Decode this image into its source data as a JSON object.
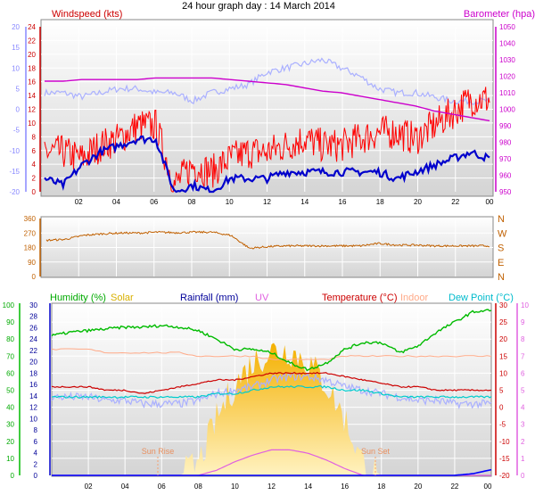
{
  "title": "24 hour graph day : 14 March 2014",
  "colors": {
    "wind": "#ff0000",
    "wind_avg": "#0000cc",
    "temp_overlay": "#aab0ff",
    "baro": "#cc00cc",
    "dir": "#c06000",
    "humidity": "#00bb00",
    "solar": "#f0c000",
    "rain": "#0000ff",
    "uv": "#e060e0",
    "temperature": "#cc0000",
    "indoor": "#ffaa88",
    "dewpoint": "#00cccc"
  },
  "panel1": {
    "left_label": "Windspeed (kts)",
    "right_label": "Barometer (hpa)",
    "outer_ticks": [
      "20",
      "15",
      "10",
      "5",
      "0",
      "-5",
      "-10",
      "-15",
      "-20"
    ],
    "left_ticks": [
      "24",
      "22",
      "20",
      "18",
      "16",
      "14",
      "12",
      "10",
      "8",
      "6",
      "4",
      "2",
      "0"
    ],
    "right_ticks": [
      "1050",
      "1040",
      "1030",
      "1020",
      "1010",
      "1000",
      "990",
      "980",
      "970",
      "960",
      "950"
    ]
  },
  "panel2": {
    "left_ticks": [
      "360",
      "270",
      "180",
      "90",
      "0"
    ],
    "right_ticks": [
      "N",
      "W",
      "S",
      "E",
      "N"
    ]
  },
  "panel3": {
    "labels": {
      "humidity": "Humidity (%)",
      "solar": "Solar",
      "rainfall": "Rainfall (mm)",
      "uv": "UV",
      "temperature": "Temperature (°C)",
      "indoor": "Indoor",
      "dewpoint": "Dew Point (°C)"
    },
    "hum_ticks": [
      "100",
      "90",
      "80",
      "70",
      "60",
      "50",
      "40",
      "30",
      "20",
      "10",
      "0"
    ],
    "rain_ticks": [
      "30",
      "28",
      "26",
      "24",
      "22",
      "20",
      "18",
      "16",
      "14",
      "12",
      "10",
      "8",
      "6",
      "4",
      "2",
      "0"
    ],
    "temp_ticks": [
      "30",
      "25",
      "20",
      "15",
      "10",
      "5",
      "0",
      "-5",
      "-10",
      "-15",
      "-20"
    ],
    "uv_ticks": [
      "10",
      "9",
      "8",
      "7",
      "6",
      "5",
      "4",
      "3",
      "2",
      "1",
      "0"
    ],
    "sun_rise": "Sun Rise",
    "sun_set": "Sun Set"
  },
  "x_ticks": [
    "02",
    "04",
    "06",
    "08",
    "10",
    "12",
    "14",
    "16",
    "18",
    "20",
    "22",
    "00"
  ],
  "chart_data": [
    {
      "type": "line",
      "title": "24 hour graph day : 14 March 2014",
      "x": [
        0,
        1,
        2,
        3,
        4,
        5,
        6,
        7,
        8,
        9,
        10,
        11,
        12,
        13,
        14,
        15,
        16,
        17,
        18,
        19,
        20,
        21,
        22,
        23,
        24
      ],
      "xticks": [
        "02",
        "04",
        "06",
        "08",
        "10",
        "12",
        "14",
        "16",
        "18",
        "20",
        "22",
        "00"
      ],
      "series": [
        {
          "name": "Windspeed (kts)",
          "axis": "left",
          "values": [
            6,
            6,
            5,
            7,
            8,
            10,
            10,
            1,
            4,
            3,
            5,
            6,
            6,
            7,
            8,
            7,
            7,
            8,
            9,
            9,
            8,
            10,
            12,
            14,
            14
          ]
        },
        {
          "name": "Windspeed (kts) average",
          "axis": "left",
          "values": [
            2,
            1,
            4,
            6,
            7,
            8,
            8,
            0,
            1,
            0,
            2,
            2,
            2,
            3,
            3,
            3,
            3,
            3,
            3,
            2,
            3,
            4,
            5,
            6,
            5
          ]
        },
        {
          "name": "Barometer (hpa)",
          "axis": "right",
          "values": [
            1017,
            1017,
            1018,
            1018,
            1018,
            1018,
            1019,
            1019,
            1019,
            1019,
            1018,
            1017,
            1016,
            1015,
            1013,
            1011,
            1010,
            1008,
            1006,
            1004,
            1002,
            999,
            997,
            995,
            993
          ]
        },
        {
          "name": "Temperature overlay",
          "axis": "outer",
          "values": [
            4,
            4,
            3,
            4,
            5,
            5,
            4,
            4,
            2,
            4,
            5,
            6,
            9,
            10,
            11,
            12,
            10,
            8,
            5,
            4,
            4,
            3,
            2,
            2,
            2
          ]
        }
      ],
      "ylim_left": [
        0,
        25
      ],
      "ylim_right": [
        950,
        1050
      ],
      "ylim_outer": [
        -20,
        20
      ]
    },
    {
      "type": "line",
      "x": [
        0,
        1,
        2,
        3,
        4,
        5,
        6,
        7,
        8,
        9,
        10,
        11,
        12,
        13,
        14,
        15,
        16,
        17,
        18,
        19,
        20,
        21,
        22,
        23,
        24
      ],
      "series": [
        {
          "name": "Wind direction",
          "values": [
            225,
            230,
            255,
            265,
            270,
            270,
            275,
            272,
            275,
            275,
            255,
            175,
            185,
            190,
            190,
            190,
            190,
            190,
            205,
            195,
            195,
            190,
            190,
            190,
            190
          ]
        }
      ],
      "ylim": [
        0,
        360
      ]
    },
    {
      "type": "line",
      "x": [
        0,
        1,
        2,
        3,
        4,
        5,
        6,
        7,
        8,
        9,
        10,
        11,
        12,
        13,
        14,
        15,
        16,
        17,
        18,
        19,
        20,
        21,
        22,
        23,
        24
      ],
      "series": [
        {
          "name": "Humidity (%)",
          "axis": "humidity",
          "values": [
            82,
            84,
            85,
            86,
            87,
            87,
            88,
            87,
            85,
            80,
            74,
            74,
            72,
            66,
            62,
            66,
            74,
            78,
            78,
            72,
            76,
            84,
            90,
            96,
            97
          ]
        },
        {
          "name": "Temperature (°C)",
          "axis": "temperature",
          "values": [
            6,
            6,
            6,
            5,
            5,
            4,
            5,
            6,
            7,
            8,
            8,
            9,
            10,
            10,
            10,
            10,
            9,
            8,
            7,
            6,
            6,
            5,
            5,
            5,
            5
          ]
        },
        {
          "name": "Indoor",
          "axis": "temperature",
          "values": [
            17,
            17,
            17,
            16,
            16,
            16,
            16,
            16,
            15,
            15,
            15,
            15,
            14,
            14,
            14,
            14,
            15,
            15,
            15,
            15,
            15,
            15,
            15,
            15,
            15
          ]
        },
        {
          "name": "Dew Point (°C)",
          "axis": "temperature",
          "values": [
            3,
            3,
            3,
            3,
            3,
            3,
            3,
            3,
            3,
            4,
            4,
            5,
            6,
            6,
            6,
            6,
            5,
            5,
            4,
            3,
            3,
            3,
            3,
            3,
            3
          ]
        },
        {
          "name": "Temperature overlay",
          "axis": "temperature",
          "values": [
            3,
            3,
            3,
            2,
            2,
            1,
            1,
            1,
            2,
            4,
            5,
            6,
            8,
            9,
            9,
            8,
            6,
            5,
            4,
            3,
            2,
            2,
            1,
            1,
            1
          ]
        },
        {
          "name": "Solar",
          "axis": "solar",
          "values": [
            0,
            0,
            0,
            0,
            0,
            0,
            0,
            0,
            2,
            10,
            16,
            20,
            22,
            22,
            20,
            16,
            10,
            2,
            0,
            0,
            0,
            0,
            0,
            0,
            0
          ]
        },
        {
          "name": "UV",
          "axis": "uv",
          "values": [
            0,
            0,
            0,
            0,
            0,
            0,
            0,
            0,
            0,
            0.3,
            0.8,
            1.2,
            1.5,
            1.5,
            1.3,
            0.9,
            0.4,
            0,
            0,
            0,
            0,
            0,
            0,
            0,
            0
          ]
        },
        {
          "name": "Rainfall (mm)",
          "axis": "rain",
          "values": [
            0,
            0,
            0,
            0,
            0,
            0,
            0,
            0,
            0,
            0,
            0,
            0,
            0,
            0,
            0,
            0,
            0,
            0,
            0,
            0,
            0,
            0,
            0,
            0.3,
            1
          ]
        }
      ],
      "ylim_humidity": [
        0,
        100
      ],
      "ylim_rain": [
        0,
        30
      ],
      "ylim_temperature": [
        -20,
        30
      ],
      "ylim_uv": [
        0,
        10
      ]
    }
  ]
}
